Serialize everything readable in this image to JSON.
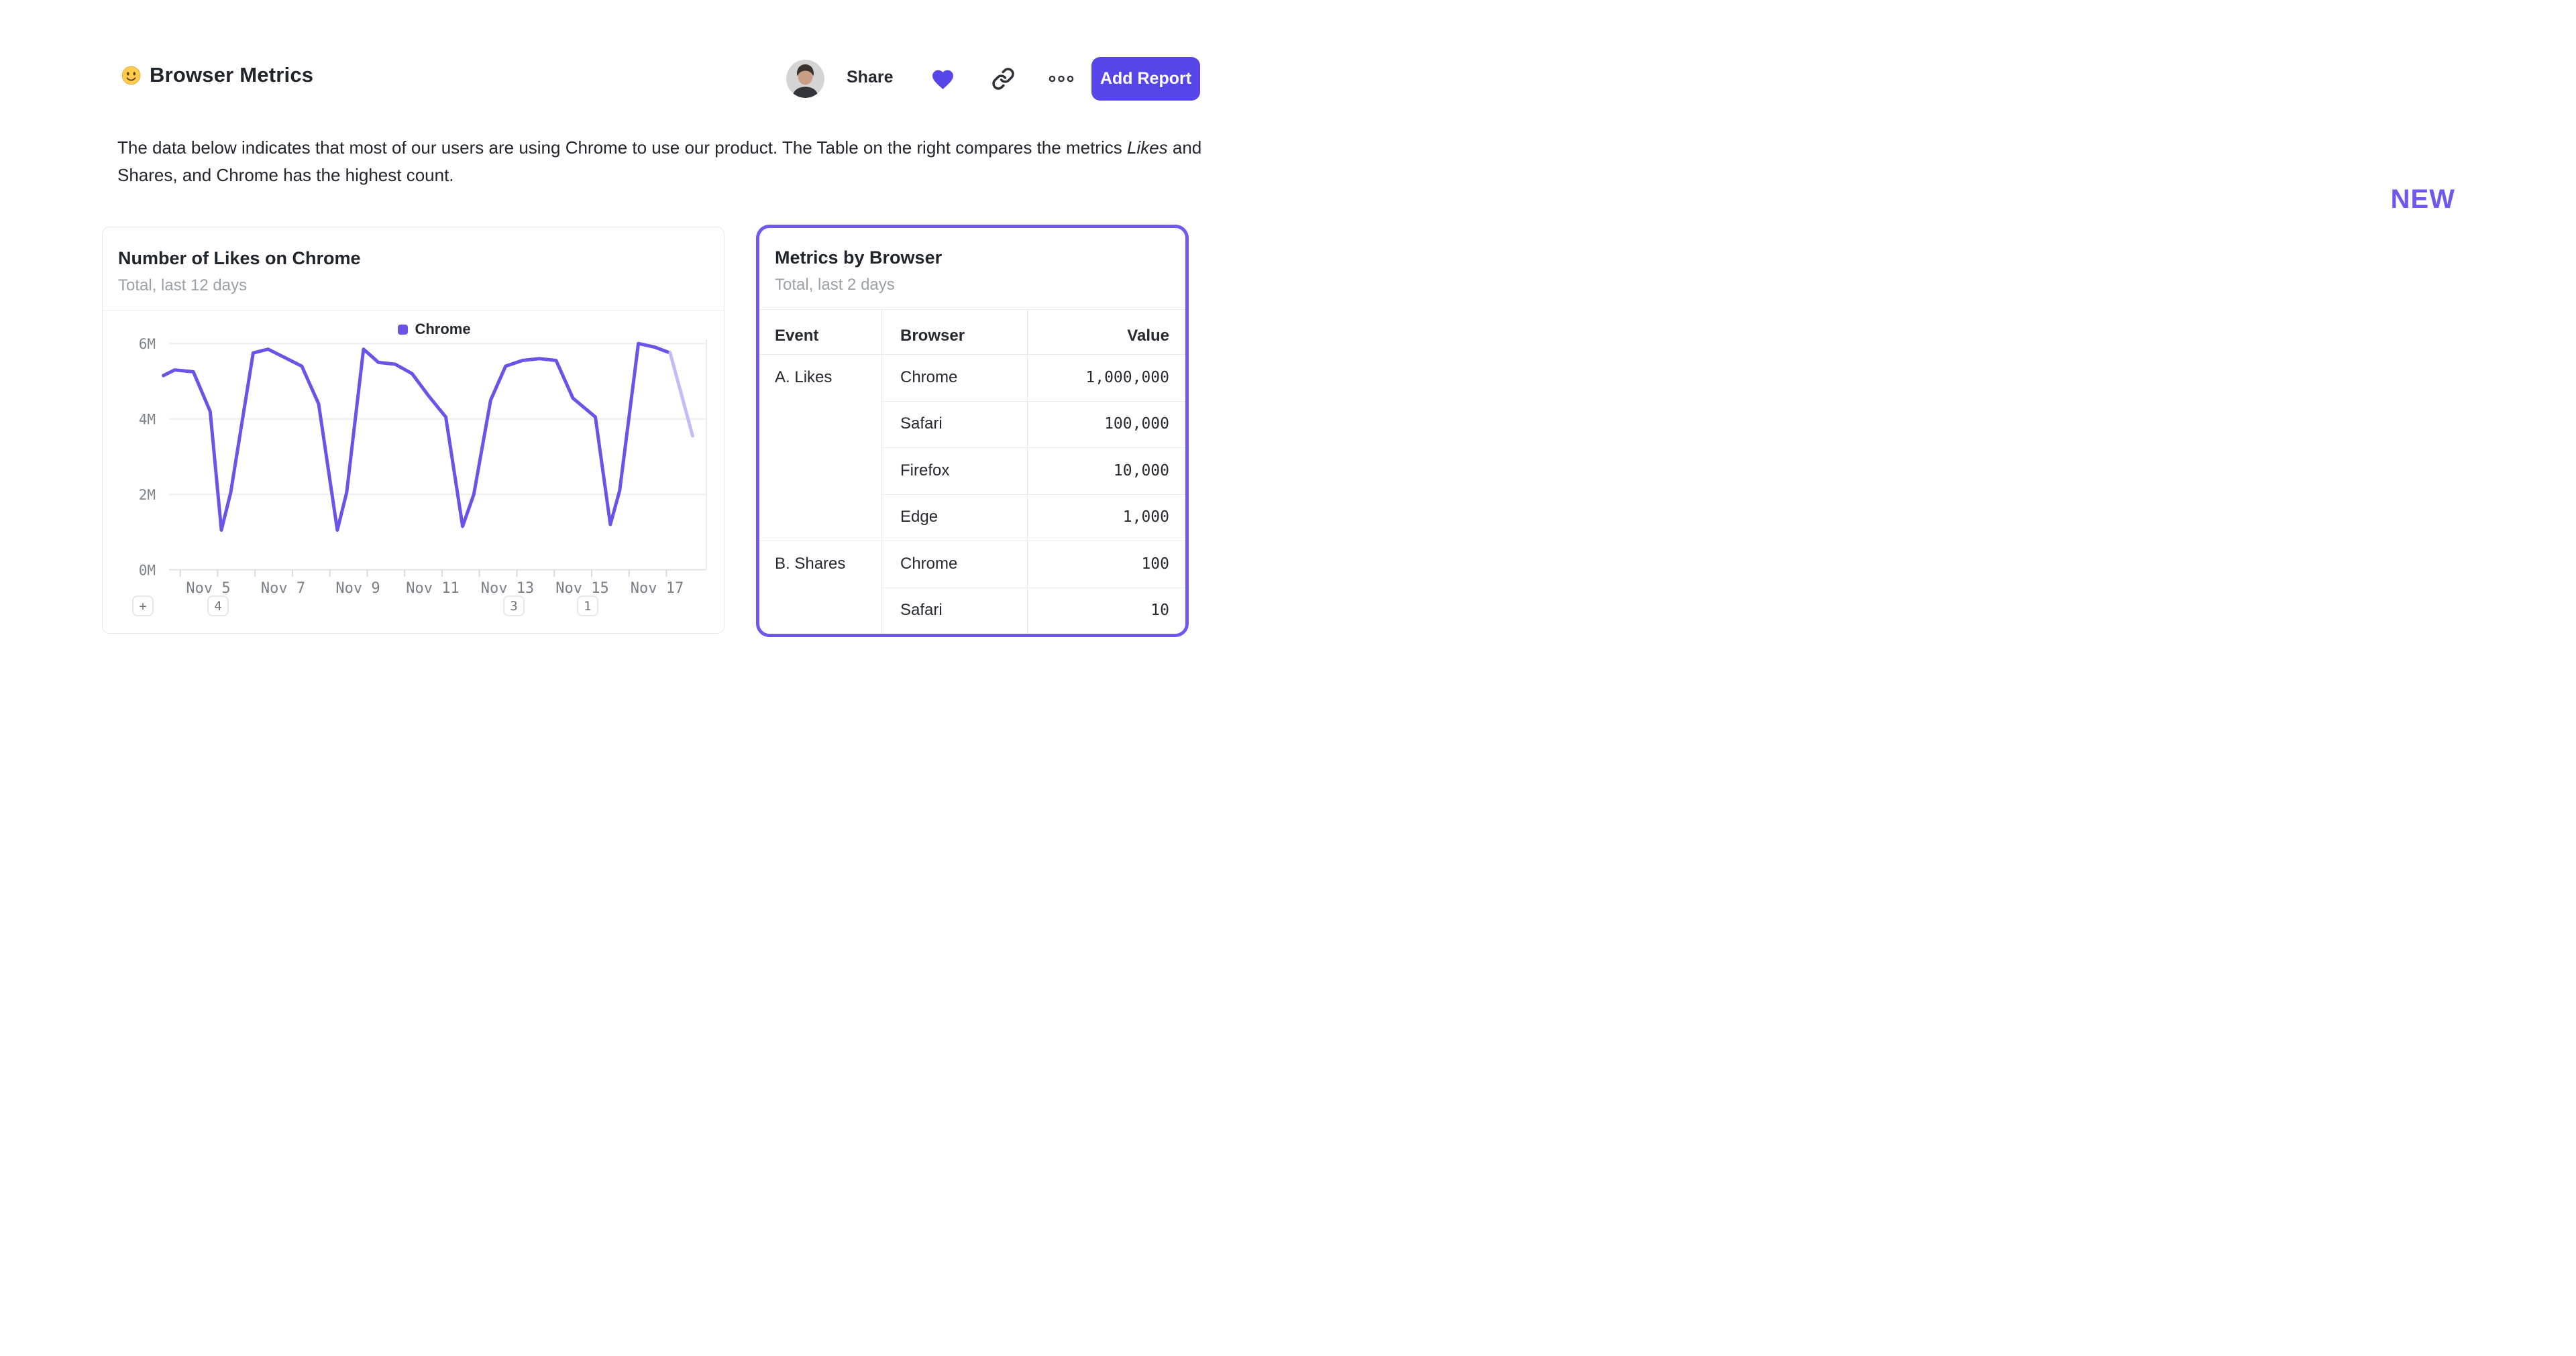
{
  "page": {
    "title": "Browser Metrics",
    "emoji": "slightly-smiling-face"
  },
  "header": {
    "share_label": "Share",
    "add_report_label": "Add Report",
    "icons": [
      "avatar",
      "heart-icon",
      "link-icon",
      "ellipsis-icon"
    ]
  },
  "description": {
    "line1": "The data below indicates that most of our users are using Chrome to use our product. The Table on the right compares the",
    "line2_pre": "metrics ",
    "line2_italic": "Likes",
    "line2_post": " and Shares, and Chrome has the highest count."
  },
  "new_label": "NEW",
  "colors": {
    "accent": "#5646e9",
    "violet": "#7257ee",
    "line": "#6b52e9",
    "line_faded": "#c6bbf8",
    "gridline": "#ececef",
    "axis_text": "#7f848c"
  },
  "line_card": {
    "title": "Number of Likes on Chrome",
    "subtitle": "Total, last 12 days",
    "legend": "Chrome"
  },
  "chart_data": {
    "type": "line",
    "title": "Number of Likes on Chrome",
    "subtitle": "Total, last 12 days",
    "unit": "millions of likes",
    "legend_position": "top-center",
    "grid": true,
    "ylim": [
      0,
      6.3
    ],
    "yticks": [
      {
        "v": 0,
        "label": "0M"
      },
      {
        "v": 2,
        "label": "2M"
      },
      {
        "v": 4,
        "label": "4M"
      },
      {
        "v": 6,
        "label": "6M"
      }
    ],
    "x_unit": "day of November",
    "x_range": [
      3.8,
      18.3
    ],
    "x_ticks": [
      {
        "day": 5,
        "label": "Nov 5"
      },
      {
        "day": 7,
        "label": "Nov 7"
      },
      {
        "day": 9,
        "label": "Nov 9"
      },
      {
        "day": 11,
        "label": "Nov 11"
      },
      {
        "day": 13,
        "label": "Nov 13"
      },
      {
        "day": 15,
        "label": "Nov 15"
      },
      {
        "day": 17,
        "label": "Nov 17"
      }
    ],
    "series": [
      {
        "name": "Chrome",
        "color": "#6b52e9",
        "x": [
          3.8,
          4.1,
          4.6,
          5.05,
          5.35,
          5.6,
          6.2,
          6.6,
          7.1,
          7.5,
          7.95,
          8.45,
          8.7,
          9.15,
          9.55,
          10.0,
          10.45,
          10.9,
          11.35,
          11.8,
          12.1,
          12.55,
          12.95,
          13.4,
          13.85,
          14.3,
          14.75,
          15.35,
          15.75,
          16.0,
          16.5,
          16.95,
          17.35,
          17.95
        ],
        "values": [
          5.15,
          5.3,
          5.25,
          4.2,
          1.05,
          2.05,
          5.75,
          5.85,
          5.6,
          5.4,
          4.4,
          1.05,
          2.05,
          5.85,
          5.5,
          5.45,
          5.2,
          4.6,
          4.05,
          1.15,
          2.0,
          4.5,
          5.4,
          5.55,
          5.6,
          5.55,
          4.55,
          4.05,
          1.2,
          2.1,
          6.0,
          5.9,
          5.75,
          3.55
        ]
      }
    ],
    "faded_last_segment": true,
    "annotations": [
      {
        "label": "+",
        "day": null
      },
      {
        "label": "4",
        "day": 5.26
      },
      {
        "label": "3",
        "day": 13.17
      },
      {
        "label": "1",
        "day": 15.14
      }
    ]
  },
  "table_card": {
    "title": "Metrics by Browser",
    "subtitle": "Total, last 2 days",
    "columns": [
      "Event",
      "Browser",
      "Value"
    ],
    "groups": [
      {
        "event": "A. Likes",
        "rows": [
          {
            "browser": "Chrome",
            "value": "1,000,000"
          },
          {
            "browser": "Safari",
            "value": "100,000"
          },
          {
            "browser": "Firefox",
            "value": "10,000"
          },
          {
            "browser": "Edge",
            "value": "1,000"
          }
        ]
      },
      {
        "event": "B. Shares",
        "rows": [
          {
            "browser": "Chrome",
            "value": "100"
          },
          {
            "browser": "Safari",
            "value": "10"
          }
        ]
      }
    ]
  }
}
